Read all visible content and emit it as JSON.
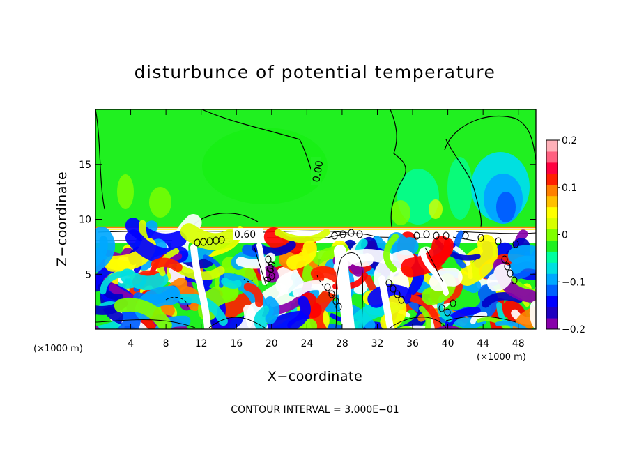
{
  "chart_data": {
    "type": "heatmap",
    "title": "disturbunce of potential temperature",
    "xlabel": "X−coordinate",
    "ylabel": "Z−coordinate",
    "x_unit": "(×1000 m)",
    "y_unit": "(×1000 m)",
    "xlim": [
      0,
      50
    ],
    "ylim": [
      0,
      20
    ],
    "x_ticks": [
      4,
      8,
      12,
      16,
      20,
      24,
      28,
      32,
      36,
      40,
      44,
      48
    ],
    "y_ticks": [
      5,
      10,
      15
    ],
    "colorbar": {
      "min": -0.2,
      "max": 0.2,
      "ticks": [
        {
          "value": 0.2,
          "label": "0.2"
        },
        {
          "value": 0.1,
          "label": "0.1"
        },
        {
          "value": 0,
          "label": "0"
        },
        {
          "value": -0.1,
          "label": "−0.1"
        },
        {
          "value": -0.2,
          "label": "−0.2"
        }
      ],
      "colors": [
        "#8800aa",
        "#2000c0",
        "#0000ff",
        "#0060ff",
        "#00a8ff",
        "#00e0e0",
        "#00ffa0",
        "#20f020",
        "#80ff00",
        "#d8ff00",
        "#ffff00",
        "#ffc000",
        "#ff8000",
        "#ff2000",
        "#ff0040",
        "#ff6080",
        "#ffb0b8"
      ]
    },
    "contour_labels": [
      "0.00",
      "0.60",
      "0.00"
    ],
    "footer": "CONTOUR INTERVAL = 3.000E−01"
  }
}
